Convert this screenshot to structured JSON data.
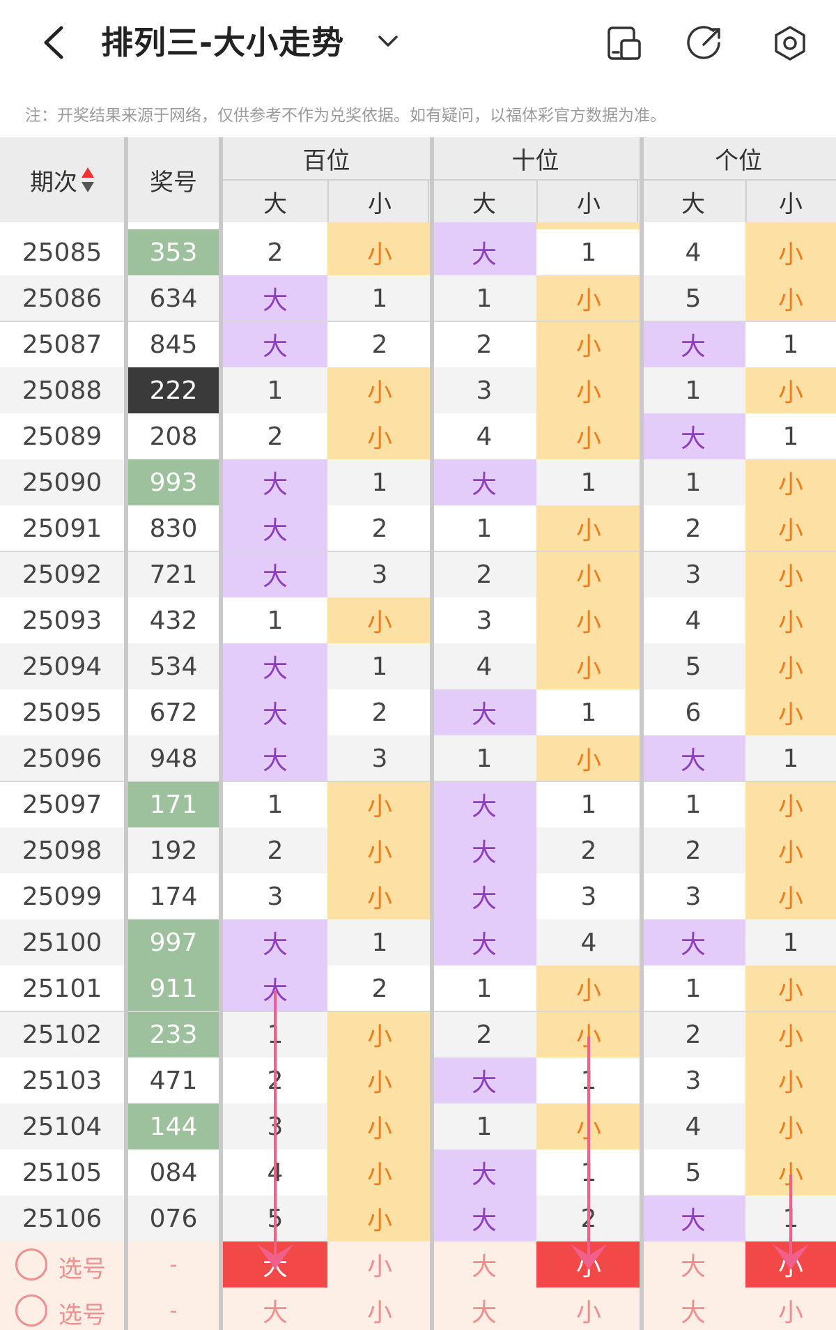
{
  "header": {
    "title": "排列三-大小走势",
    "icons": [
      "back-icon",
      "chevron-down-icon",
      "layout-icon",
      "share-icon",
      "settings-icon"
    ]
  },
  "note": "注：开奖结果来源于网络，仅供参考不作为兑奖依据。如有疑问，以福体彩官方数据为准。",
  "columns": {
    "period": "期次",
    "number": "奖号",
    "groups": [
      "百位",
      "十位",
      "个位"
    ],
    "big": "大",
    "small": "小"
  },
  "colors": {
    "purple": "#e3ccfa",
    "yellow": "#fde1a4",
    "green": "#9dc19c",
    "dark": "#3a3a3a",
    "red": "#f24848",
    "accent_pink": "#f0608a",
    "small_text": "#f07d1c",
    "big_text": "#8e3fbf"
  },
  "rows": [
    {
      "period": "25085",
      "number": "353",
      "num_style": "green",
      "cells": [
        "2",
        "小",
        "大",
        "1",
        "4",
        "小"
      ]
    },
    {
      "period": "25086",
      "number": "634",
      "num_style": "",
      "cells": [
        "大",
        "1",
        "1",
        "小",
        "5",
        "小"
      ]
    },
    {
      "period": "25087",
      "number": "845",
      "num_style": "",
      "cells": [
        "大",
        "2",
        "2",
        "小",
        "大",
        "1"
      ]
    },
    {
      "period": "25088",
      "number": "222",
      "num_style": "dark",
      "cells": [
        "1",
        "小",
        "3",
        "小",
        "1",
        "小"
      ]
    },
    {
      "period": "25089",
      "number": "208",
      "num_style": "",
      "cells": [
        "2",
        "小",
        "4",
        "小",
        "大",
        "1"
      ]
    },
    {
      "period": "25090",
      "number": "993",
      "num_style": "green",
      "cells": [
        "大",
        "1",
        "大",
        "1",
        "1",
        "小"
      ]
    },
    {
      "period": "25091",
      "number": "830",
      "num_style": "",
      "cells": [
        "大",
        "2",
        "1",
        "小",
        "2",
        "小"
      ]
    },
    {
      "period": "25092",
      "number": "721",
      "num_style": "",
      "cells": [
        "大",
        "3",
        "2",
        "小",
        "3",
        "小"
      ]
    },
    {
      "period": "25093",
      "number": "432",
      "num_style": "",
      "cells": [
        "1",
        "小",
        "3",
        "小",
        "4",
        "小"
      ]
    },
    {
      "period": "25094",
      "number": "534",
      "num_style": "",
      "cells": [
        "大",
        "1",
        "4",
        "小",
        "5",
        "小"
      ]
    },
    {
      "period": "25095",
      "number": "672",
      "num_style": "",
      "cells": [
        "大",
        "2",
        "大",
        "1",
        "6",
        "小"
      ]
    },
    {
      "period": "25096",
      "number": "948",
      "num_style": "",
      "cells": [
        "大",
        "3",
        "1",
        "小",
        "大",
        "1"
      ]
    },
    {
      "period": "25097",
      "number": "171",
      "num_style": "green",
      "cells": [
        "1",
        "小",
        "大",
        "1",
        "1",
        "小"
      ]
    },
    {
      "period": "25098",
      "number": "192",
      "num_style": "",
      "cells": [
        "2",
        "小",
        "大",
        "2",
        "2",
        "小"
      ]
    },
    {
      "period": "25099",
      "number": "174",
      "num_style": "",
      "cells": [
        "3",
        "小",
        "大",
        "3",
        "3",
        "小"
      ]
    },
    {
      "period": "25100",
      "number": "997",
      "num_style": "green",
      "cells": [
        "大",
        "1",
        "大",
        "4",
        "大",
        "1"
      ]
    },
    {
      "period": "25101",
      "number": "911",
      "num_style": "green",
      "cells": [
        "大",
        "2",
        "1",
        "小",
        "1",
        "小"
      ]
    },
    {
      "period": "25102",
      "number": "233",
      "num_style": "green",
      "cells": [
        "1",
        "小",
        "2",
        "小",
        "2",
        "小"
      ]
    },
    {
      "period": "25103",
      "number": "471",
      "num_style": "",
      "cells": [
        "2",
        "小",
        "大",
        "1",
        "3",
        "小"
      ]
    },
    {
      "period": "25104",
      "number": "144",
      "num_style": "green",
      "cells": [
        "3",
        "小",
        "1",
        "小",
        "4",
        "小"
      ]
    },
    {
      "period": "25105",
      "number": "084",
      "num_style": "",
      "cells": [
        "4",
        "小",
        "大",
        "1",
        "5",
        "小"
      ]
    },
    {
      "period": "25106",
      "number": "076",
      "num_style": "",
      "cells": [
        "5",
        "小",
        "大",
        "2",
        "大",
        "1"
      ]
    }
  ],
  "select_rows": [
    {
      "label": "选号",
      "number": "-",
      "cells": [
        "大",
        "小",
        "大",
        "小",
        "大",
        "小"
      ],
      "selected": [
        0,
        3,
        5
      ]
    },
    {
      "label": "选号",
      "number": "-",
      "cells": [
        "大",
        "小",
        "大",
        "小",
        "大",
        "小"
      ],
      "selected": []
    }
  ]
}
